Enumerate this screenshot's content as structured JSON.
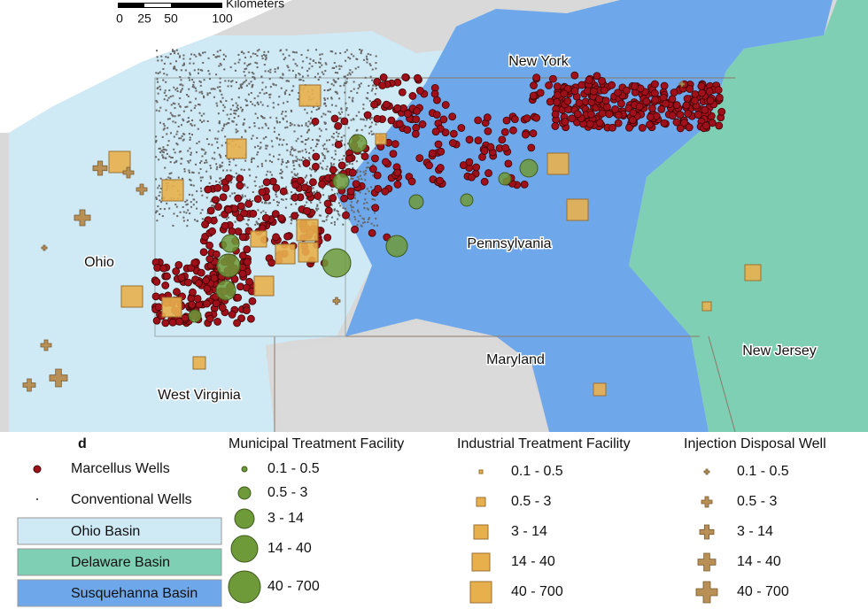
{
  "map": {
    "scale": {
      "unit": "Kilometers",
      "ticks": [
        "0",
        "25",
        "50",
        "100"
      ]
    },
    "labels": {
      "new_york": "New York",
      "pennsylvania": "Pennsylvania",
      "ohio": "Ohio",
      "maryland": "Maryland",
      "new_jersey": "New Jersey",
      "west_virginia": "West Virginia"
    }
  },
  "legend": {
    "panel": "d",
    "wells": [
      "Marcellus Wells",
      "Conventional Wells"
    ],
    "basins": [
      "Ohio Basin",
      "Delaware Basin",
      "Susquehanna Basin"
    ],
    "municipal": {
      "title": "Municipal Treatment Facility",
      "classes": [
        "0.1 - 0.5",
        "0.5 - 3",
        "3 - 14",
        "14 - 40",
        "40 - 700"
      ]
    },
    "industrial": {
      "title": "Industrial Treatment Facility",
      "classes": [
        "0.1 - 0.5",
        "0.5 - 3",
        "3 - 14",
        "14 - 40",
        "40 - 700"
      ]
    },
    "injection": {
      "title": "Injection Disposal Well",
      "classes": [
        "0.1 - 0.5",
        "0.5 - 3",
        "3 - 14",
        "14 - 40",
        "40 - 700"
      ]
    }
  }
}
